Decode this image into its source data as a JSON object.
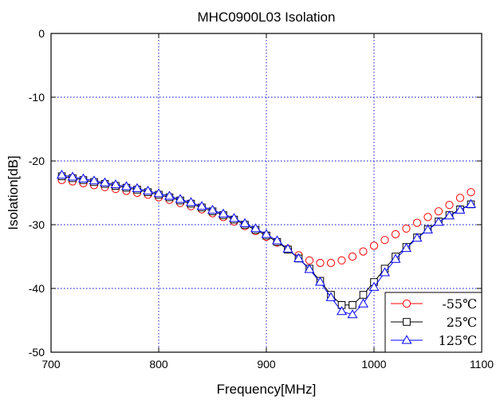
{
  "chart_data": {
    "type": "line",
    "title": "MHC0900L03 Isolation",
    "xlabel": "Frequency[MHz]",
    "ylabel": "Isolation[dB]",
    "xlim": [
      700,
      1100
    ],
    "ylim": [
      -50,
      0
    ],
    "xticks": [
      "700",
      "800",
      "900",
      "1000",
      "1100"
    ],
    "yticks": [
      "0",
      "-10",
      "-20",
      "-30",
      "-40",
      "-50"
    ],
    "grid": true,
    "legend_position": "bottom-right",
    "x": [
      710,
      720,
      730,
      740,
      750,
      760,
      770,
      780,
      790,
      800,
      810,
      820,
      830,
      840,
      850,
      860,
      870,
      880,
      890,
      900,
      910,
      920,
      930,
      940,
      950,
      960,
      970,
      980,
      990,
      1000,
      1010,
      1020,
      1030,
      1040,
      1050,
      1060,
      1070,
      1080,
      1090
    ],
    "series": [
      {
        "name": "-55℃",
        "color": "#ff0000",
        "marker": "circle",
        "values": [
          -23.0,
          -23.2,
          -23.5,
          -23.8,
          -24.1,
          -24.4,
          -24.7,
          -25.0,
          -25.3,
          -25.7,
          -26.1,
          -26.6,
          -27.1,
          -27.6,
          -28.2,
          -28.8,
          -29.5,
          -30.2,
          -31.0,
          -31.9,
          -32.8,
          -33.8,
          -34.8,
          -35.6,
          -36.0,
          -36.0,
          -35.6,
          -35.0,
          -34.2,
          -33.3,
          -32.4,
          -31.5,
          -30.6,
          -29.7,
          -28.8,
          -27.9,
          -26.9,
          -25.8,
          -24.9
        ]
      },
      {
        "name": "25℃",
        "color": "#000000",
        "marker": "square",
        "values": [
          -22.4,
          -22.7,
          -23.0,
          -23.3,
          -23.6,
          -23.9,
          -24.2,
          -24.5,
          -24.9,
          -25.3,
          -25.7,
          -26.2,
          -26.7,
          -27.3,
          -27.9,
          -28.5,
          -29.2,
          -30.0,
          -30.8,
          -31.7,
          -32.7,
          -33.9,
          -35.3,
          -36.9,
          -38.8,
          -41.0,
          -42.6,
          -42.6,
          -41.0,
          -39.0,
          -36.9,
          -35.0,
          -33.5,
          -32.0,
          -30.7,
          -29.5,
          -28.5,
          -27.6,
          -26.8
        ]
      },
      {
        "name": "125℃",
        "color": "#0000ff",
        "marker": "triangle",
        "values": [
          -22.2,
          -22.5,
          -22.8,
          -23.1,
          -23.4,
          -23.7,
          -24.0,
          -24.3,
          -24.7,
          -25.1,
          -25.5,
          -26.0,
          -26.5,
          -27.1,
          -27.7,
          -28.3,
          -29.0,
          -29.8,
          -30.6,
          -31.5,
          -32.5,
          -33.8,
          -35.3,
          -37.0,
          -39.0,
          -41.4,
          -43.6,
          -44.1,
          -42.4,
          -39.8,
          -37.5,
          -35.4,
          -33.7,
          -32.1,
          -30.8,
          -29.6,
          -28.6,
          -27.7,
          -26.8
        ]
      }
    ]
  }
}
